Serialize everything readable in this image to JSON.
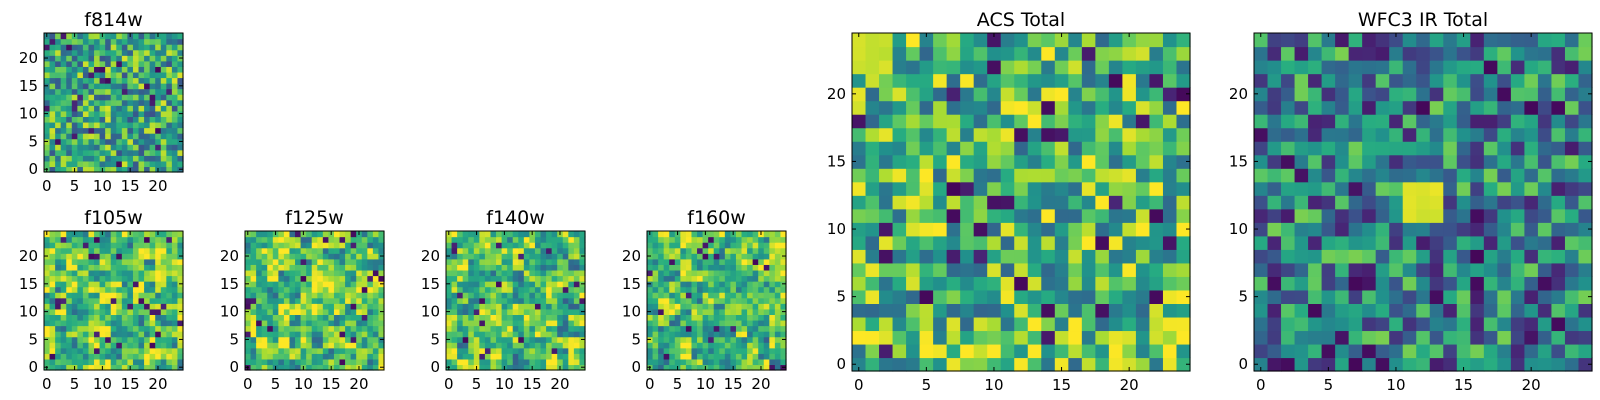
{
  "chart_data": [
    {
      "id": "f814w",
      "type": "heatmap",
      "title": "f814w",
      "xlabel": "",
      "ylabel": "",
      "grid_size": [
        25,
        25
      ],
      "xlim": [
        0,
        25
      ],
      "ylim": [
        0,
        25
      ],
      "x_ticks": [
        0,
        5,
        10,
        15,
        20
      ],
      "y_ticks": [
        0,
        5,
        10,
        15,
        20
      ],
      "colormap": "viridis",
      "texture_seed": 11,
      "texture_bias": 0.6,
      "texture_blob_size": 1
    },
    {
      "id": "f105w",
      "type": "heatmap",
      "title": "f105w",
      "xlabel": "",
      "ylabel": "",
      "grid_size": [
        25,
        25
      ],
      "xlim": [
        0,
        25
      ],
      "ylim": [
        0,
        25
      ],
      "x_ticks": [
        0,
        5,
        10,
        15,
        20
      ],
      "y_ticks": [
        0,
        5,
        10,
        15,
        20
      ],
      "colormap": "viridis",
      "texture_seed": 23,
      "texture_bias": 0.74,
      "texture_blob_size": 2
    },
    {
      "id": "f125w",
      "type": "heatmap",
      "title": "f125w",
      "xlabel": "",
      "ylabel": "",
      "grid_size": [
        25,
        25
      ],
      "xlim": [
        0,
        25
      ],
      "ylim": [
        0,
        25
      ],
      "x_ticks": [
        0,
        5,
        10,
        15,
        20
      ],
      "y_ticks": [
        0,
        5,
        10,
        15,
        20
      ],
      "colormap": "viridis",
      "texture_seed": 37,
      "texture_bias": 0.73,
      "texture_blob_size": 2
    },
    {
      "id": "f140w",
      "type": "heatmap",
      "title": "f140w",
      "xlabel": "",
      "ylabel": "",
      "grid_size": [
        25,
        25
      ],
      "xlim": [
        0,
        25
      ],
      "ylim": [
        0,
        25
      ],
      "x_ticks": [
        0,
        5,
        10,
        15,
        20
      ],
      "y_ticks": [
        0,
        5,
        10,
        15,
        20
      ],
      "colormap": "viridis",
      "texture_seed": 41,
      "texture_bias": 0.7,
      "texture_blob_size": 2
    },
    {
      "id": "f160w",
      "type": "heatmap",
      "title": "f160w",
      "xlabel": "",
      "ylabel": "",
      "grid_size": [
        25,
        25
      ],
      "xlim": [
        0,
        25
      ],
      "ylim": [
        0,
        25
      ],
      "x_ticks": [
        0,
        5,
        10,
        15,
        20
      ],
      "y_ticks": [
        0,
        5,
        10,
        15,
        20
      ],
      "colormap": "viridis",
      "texture_seed": 53,
      "texture_bias": 0.72,
      "texture_blob_size": 2
    },
    {
      "id": "acs-total",
      "type": "heatmap",
      "title": "ACS Total",
      "xlabel": "",
      "ylabel": "",
      "grid_size": [
        25,
        25
      ],
      "xlim": [
        0,
        25
      ],
      "ylim": [
        0,
        25
      ],
      "x_ticks": [
        0,
        5,
        10,
        15,
        20
      ],
      "y_ticks": [
        0,
        5,
        10,
        15,
        20
      ],
      "colormap": "viridis",
      "texture_seed": 67,
      "texture_bias": 0.68,
      "texture_blob_size": 1,
      "hot_region": {
        "x": [
          0,
          3
        ],
        "y": [
          22,
          25
        ],
        "value": 0.95
      },
      "dark_spots": [
        [
          12,
          6
        ],
        [
          19,
          21
        ],
        [
          7,
          13
        ],
        [
          10,
          12
        ],
        [
          24,
          20
        ],
        [
          18,
          9
        ],
        [
          9,
          10
        ],
        [
          14,
          17
        ],
        [
          2,
          8
        ],
        [
          14,
          4
        ]
      ]
    },
    {
      "id": "wfc3-ir-total",
      "type": "heatmap",
      "title": "WFC3 IR Total",
      "xlabel": "",
      "ylabel": "",
      "grid_size": [
        25,
        25
      ],
      "xlim": [
        0,
        25
      ],
      "ylim": [
        0,
        25
      ],
      "x_ticks": [
        0,
        5,
        10,
        15,
        20
      ],
      "y_ticks": [
        0,
        5,
        10,
        15,
        20
      ],
      "colormap": "viridis",
      "texture_seed": 79,
      "texture_bias": 0.45,
      "texture_blob_size": 1,
      "hot_region": {
        "x": [
          11,
          14
        ],
        "y": [
          11,
          14
        ],
        "value": 0.98
      },
      "dark_spots": [
        [
          12,
          19
        ],
        [
          20,
          19
        ],
        [
          22,
          19
        ],
        [
          0,
          17
        ],
        [
          3,
          14
        ],
        [
          21,
          6
        ],
        [
          2,
          15
        ],
        [
          16,
          6
        ],
        [
          7,
          6
        ],
        [
          13,
          5
        ],
        [
          4,
          4
        ],
        [
          20,
          2
        ],
        [
          6,
          2
        ],
        [
          22,
          3
        ],
        [
          1,
          0
        ],
        [
          2,
          0
        ],
        [
          7,
          0
        ],
        [
          9,
          0
        ],
        [
          5,
          1
        ],
        [
          16,
          11
        ],
        [
          17,
          22
        ]
      ]
    }
  ]
}
